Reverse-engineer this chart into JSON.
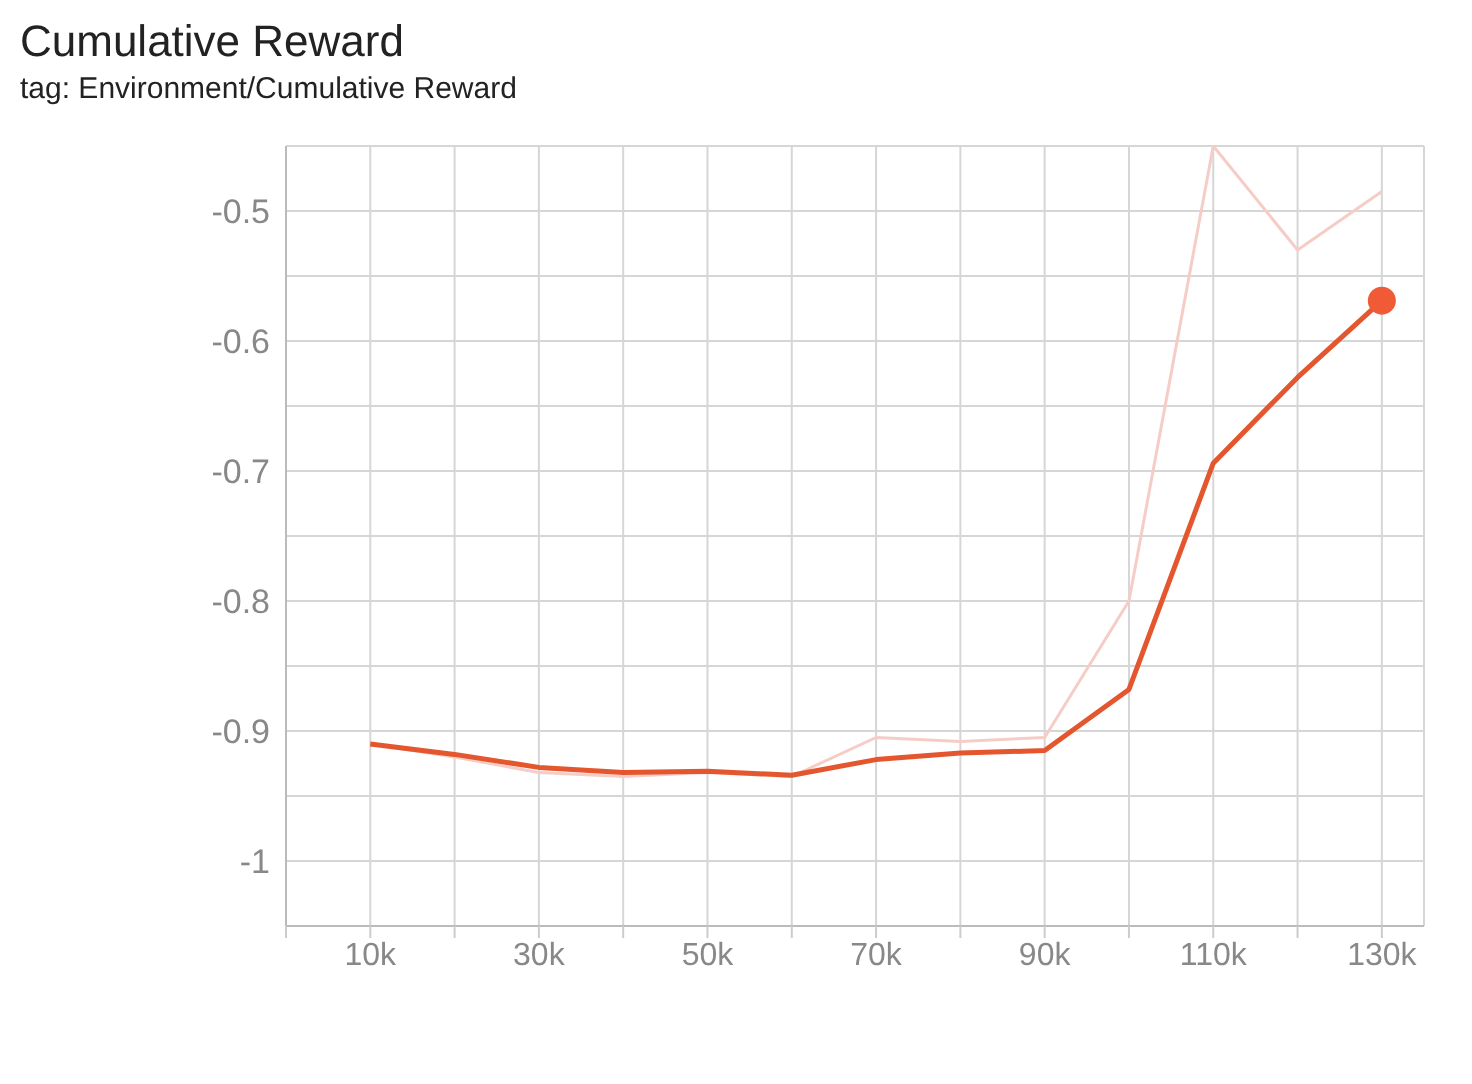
{
  "chart_data": {
    "type": "line",
    "title": "Cumulative Reward",
    "subtitle": "tag: Environment/Cumulative Reward",
    "x": [
      10000,
      20000,
      30000,
      40000,
      50000,
      60000,
      70000,
      80000,
      90000,
      100000,
      110000,
      120000,
      130000
    ],
    "series": [
      {
        "color": "#f5cdc6",
        "values": [
          -0.91,
          -0.92,
          -0.932,
          -0.935,
          -0.932,
          -0.935,
          -0.905,
          -0.908,
          -0.905,
          -0.8,
          -0.45,
          -0.53,
          -0.485
        ]
      },
      {
        "color": "#e4572e",
        "values": [
          -0.91,
          -0.918,
          -0.928,
          -0.932,
          -0.931,
          -0.934,
          -0.922,
          -0.917,
          -0.915,
          -0.868,
          -0.694,
          -0.628,
          -0.569
        ]
      },
      {
        "type": "scatter",
        "marker": "circle",
        "color": "#f05a36",
        "x": [
          130000
        ],
        "values": [
          -0.569
        ]
      }
    ],
    "xlim": [
      0,
      135000
    ],
    "xticks": [
      {
        "value": 0,
        "label": null
      },
      {
        "value": 10000,
        "label": "10k"
      },
      {
        "value": 20000,
        "label": null
      },
      {
        "value": 30000,
        "label": "30k"
      },
      {
        "value": 40000,
        "label": null
      },
      {
        "value": 50000,
        "label": "50k"
      },
      {
        "value": 60000,
        "label": null
      },
      {
        "value": 70000,
        "label": "70k"
      },
      {
        "value": 80000,
        "label": null
      },
      {
        "value": 90000,
        "label": "90k"
      },
      {
        "value": 100000,
        "label": null
      },
      {
        "value": 110000,
        "label": "110k"
      },
      {
        "value": 120000,
        "label": null
      },
      {
        "value": 130000,
        "label": "130k"
      }
    ],
    "ylim": [
      -1.05,
      -0.45
    ],
    "yticks": [
      {
        "value": -1.05,
        "label": null
      },
      -1,
      {
        "value": -0.95,
        "label": null
      },
      -0.9,
      {
        "value": -0.85,
        "label": null
      },
      -0.8,
      {
        "value": -0.75,
        "label": null
      },
      -0.7,
      {
        "value": -0.65,
        "label": null
      },
      -0.6,
      {
        "value": -0.55,
        "label": null
      },
      -0.5,
      {
        "value": -0.45,
        "label": null
      }
    ],
    "grid": true,
    "marker": "none",
    "line_style": "solid"
  }
}
